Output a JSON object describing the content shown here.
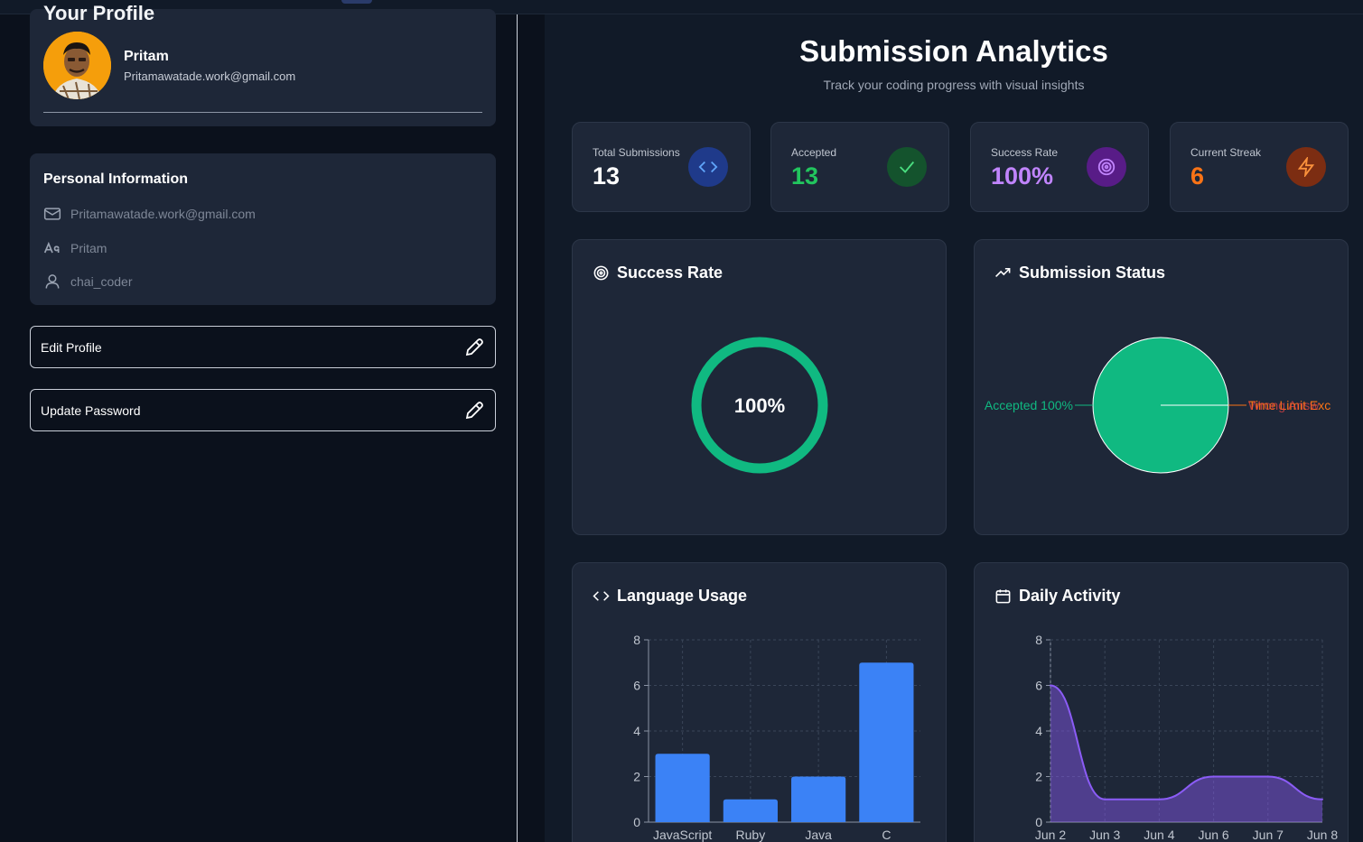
{
  "profile": {
    "section_title": "Your Profile",
    "name": "Pritam",
    "email": "Pritamawatade.work@gmail.com"
  },
  "personal_info": {
    "title": "Personal Information",
    "email": "Pritamawatade.work@gmail.com",
    "name": "Pritam",
    "username": "chai_coder"
  },
  "actions": {
    "edit_profile": "Edit Profile",
    "update_password": "Update Password"
  },
  "analytics": {
    "title": "Submission Analytics",
    "subtitle": "Track your coding progress with visual insights"
  },
  "stats": [
    {
      "label": "Total Submissions",
      "value": "13",
      "color": "#ffffff",
      "icon_bg": "#1f3a8a",
      "icon_fg": "#60a5fa",
      "icon": "code-icon"
    },
    {
      "label": "Accepted",
      "value": "13",
      "color": "#22c55e",
      "icon_bg": "#14532d",
      "icon_fg": "#4ade80",
      "icon": "check-icon"
    },
    {
      "label": "Success Rate",
      "value": "100%",
      "color": "#c084fc",
      "icon_bg": "#581c87",
      "icon_fg": "#c084fc",
      "icon": "target-icon"
    },
    {
      "label": "Current Streak",
      "value": "6",
      "color": "#f97316",
      "icon_bg": "#7c2d12",
      "icon_fg": "#fb923c",
      "icon": "zap-icon"
    }
  ],
  "panels": {
    "success_rate": {
      "title": "Success Rate",
      "value_label": "100%",
      "value": 100
    },
    "submission_status": {
      "title": "Submission Status",
      "accepted_label": "Accepted 100%",
      "other_label_1": "Time Limit Exc",
      "other_label_2": "Wrong Answ"
    },
    "language_usage": {
      "title": "Language Usage"
    },
    "daily_activity": {
      "title": "Daily Activity"
    }
  },
  "chart_data": [
    {
      "type": "pie",
      "title": "Submission Status",
      "categories": [
        "Accepted",
        "Time Limit Exceeded",
        "Wrong Answer"
      ],
      "values": [
        13,
        0,
        0
      ],
      "colors": [
        "#10b981",
        "#f97316",
        "#ef4444"
      ]
    },
    {
      "type": "bar",
      "title": "Language Usage",
      "categories": [
        "JavaScript",
        "Ruby",
        "Java",
        "C"
      ],
      "values": [
        3,
        1,
        2,
        7
      ],
      "yticks": [
        "0",
        "2",
        "4",
        "6",
        "8"
      ],
      "ylim": [
        0,
        8
      ],
      "color": "#3b82f6"
    },
    {
      "type": "area",
      "title": "Daily Activity",
      "categories": [
        "Jun 2",
        "Jun 3",
        "Jun 4",
        "Jun 6",
        "Jun 7",
        "Jun 8"
      ],
      "values": [
        6,
        1,
        1,
        2,
        2,
        1
      ],
      "yticks": [
        "0",
        "2",
        "4",
        "6",
        "8"
      ],
      "ylim": [
        0,
        8
      ],
      "color": "#8b5cf6"
    }
  ]
}
